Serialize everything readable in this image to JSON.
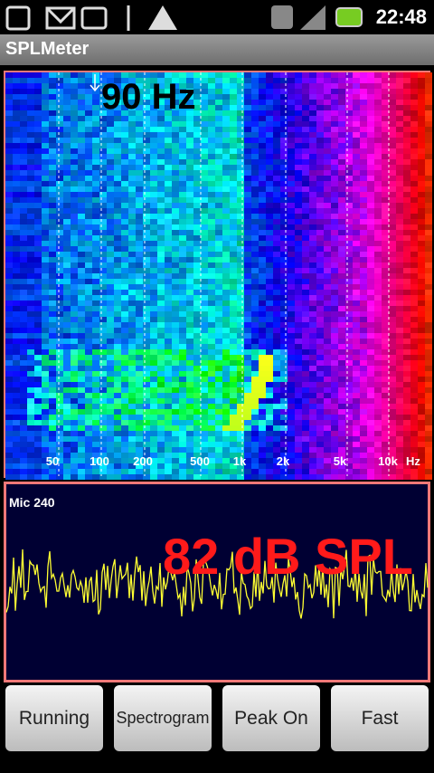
{
  "status_bar": {
    "time": "22:48"
  },
  "title_bar": {
    "title": "SPLMeter"
  },
  "spectrogram": {
    "peak_label": "90 Hz",
    "freq_labels": [
      "50",
      "100",
      "200",
      "500",
      "1k",
      "2k",
      "5k",
      "10k",
      "Hz"
    ]
  },
  "meter": {
    "mic_label": "Mic 240",
    "level": "82 dB SPL"
  },
  "buttons": [
    "Running",
    "Spectrogram",
    "Peak On",
    "Fast"
  ]
}
